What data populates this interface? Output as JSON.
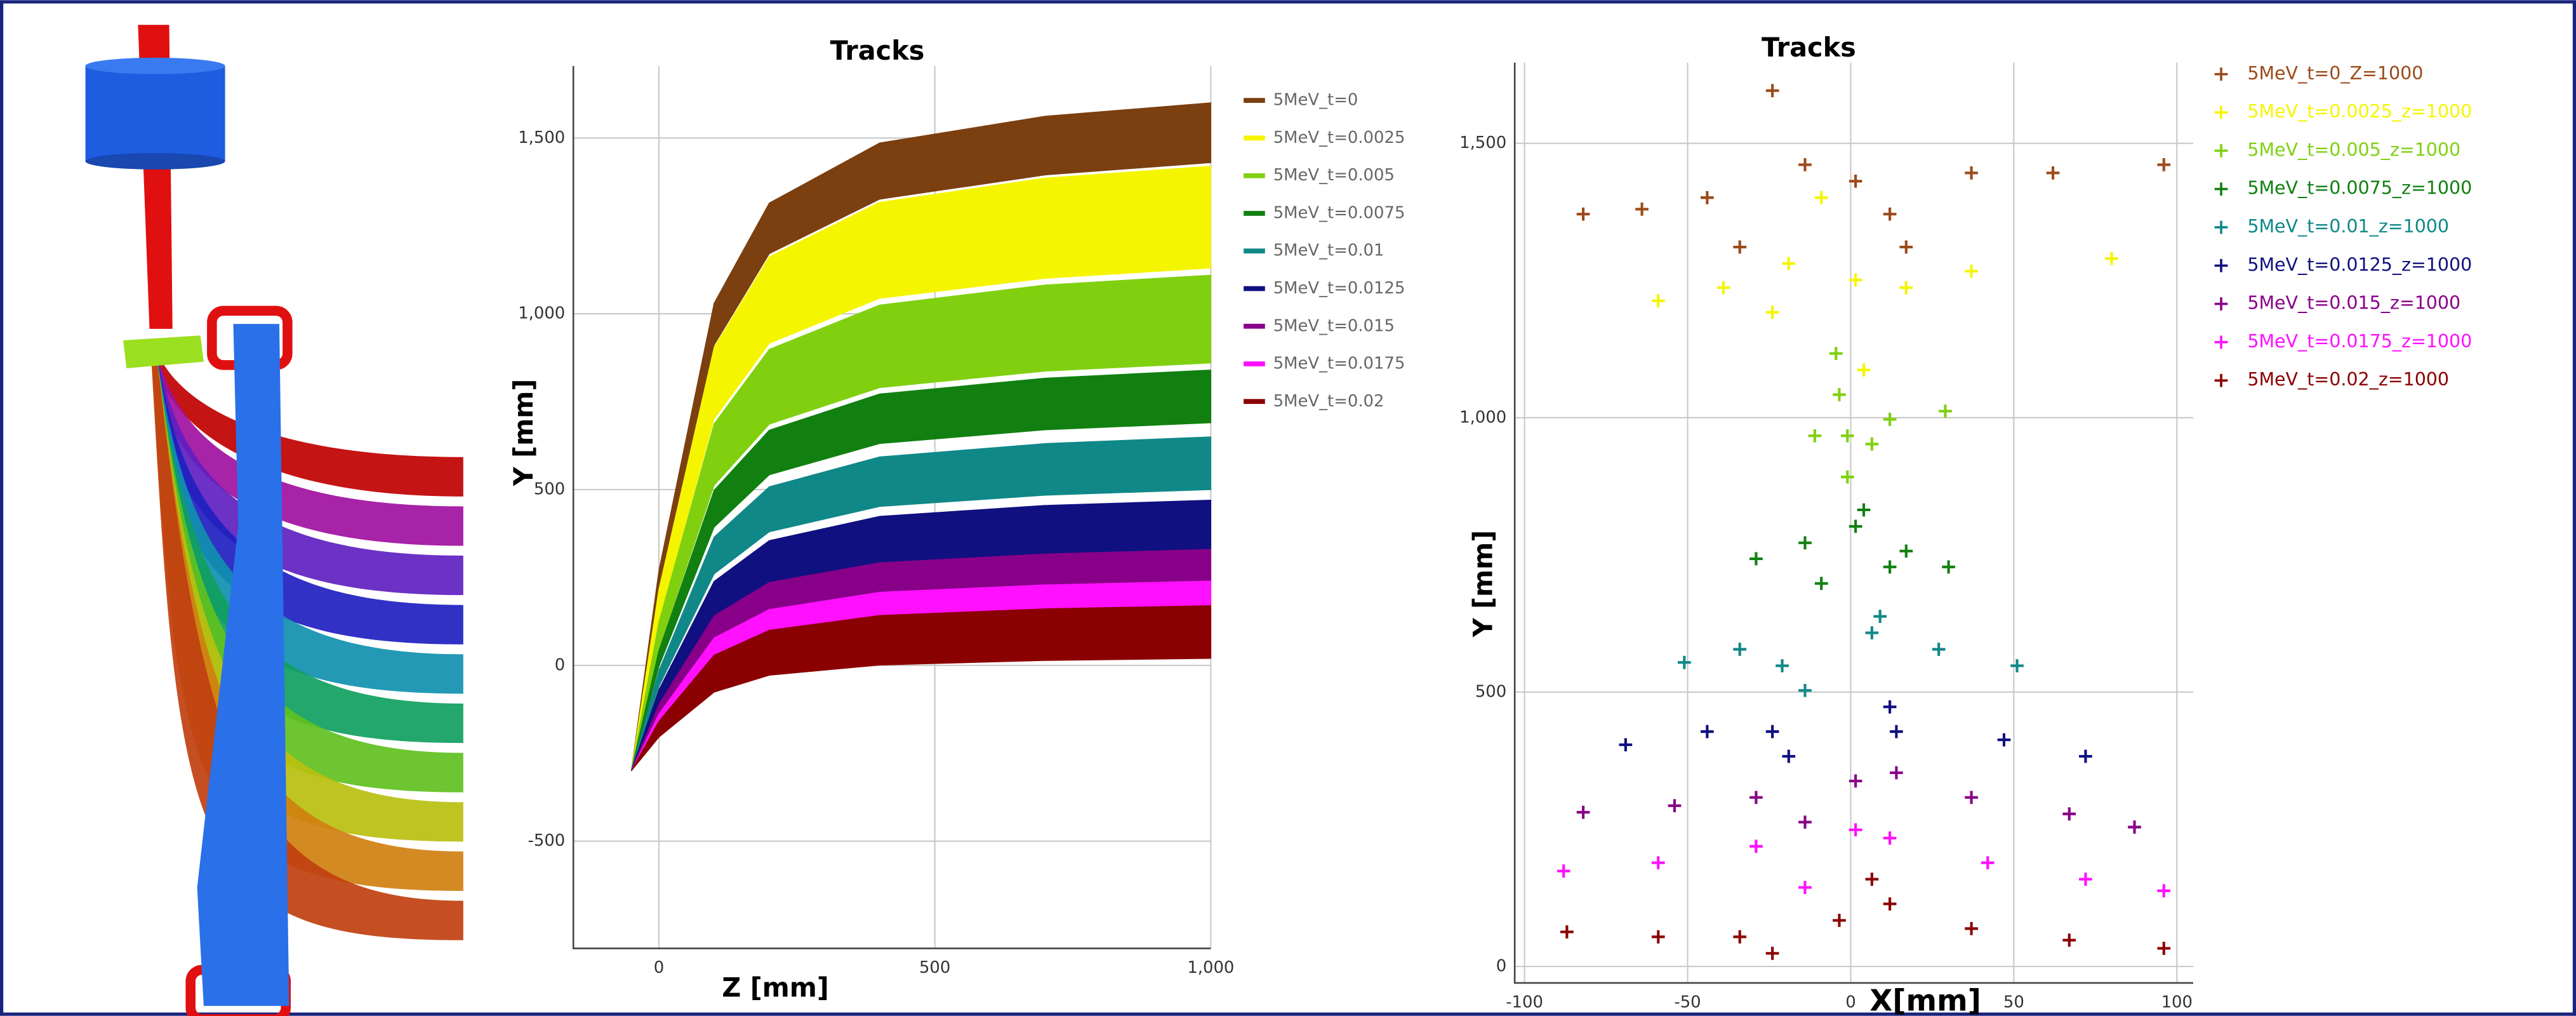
{
  "chart_data": [
    {
      "type": "band",
      "title": "Tracks",
      "x_label": "Z [mm]",
      "y_label": "Y [mm]",
      "legend": "right",
      "grid": true,
      "xlim": [
        -155,
        1000
      ],
      "ylim": [
        -805,
        1705
      ],
      "xticks": [
        0,
        500,
        {
          "value": 1000,
          "label": "1,000"
        }
      ],
      "yticks": [
        -500,
        0,
        500,
        {
          "value": 1000,
          "label": "1,000"
        },
        {
          "value": 1500,
          "label": "1,500"
        }
      ],
      "x": [
        -50,
        0,
        100,
        200,
        400,
        700,
        1000
      ],
      "series": [
        {
          "name": "5MeV_t=0",
          "color": "#7b3f10",
          "values": [
            -300,
            270,
            1030,
            1315,
            1486,
            1562,
            1600
          ],
          "lower": [
            -300,
            219,
            911,
            1171,
            1326,
            1395,
            1430
          ]
        },
        {
          "name": "5MeV_t=0.0025",
          "color": "#f5f500",
          "values": [
            -300,
            216,
            904,
            1162,
            1317,
            1386,
            1420
          ],
          "lower": [
            -300,
            129,
            701,
            916,
            1044,
            1101,
            1130
          ]
        },
        {
          "name": "5MeV_t=0.005",
          "color": "#80d010",
          "values": [
            -300,
            123,
            687,
            899,
            1025,
            1082,
            1110
          ],
          "lower": [
            -300,
            48,
            512,
            686,
            790,
            837,
            860
          ]
        },
        {
          "name": "5MeV_t=0.0075",
          "color": "#118011",
          "values": [
            -300,
            42,
            498,
            669,
            772,
            817,
            840
          ],
          "lower": [
            -300,
            -3,
            393,
            542,
            631,
            670,
            690
          ]
        },
        {
          "name": "5MeV_t=0.01",
          "color": "#108888",
          "values": [
            -300,
            -15,
            365,
            508,
            593,
            631,
            650
          ],
          "lower": [
            -300,
            -60,
            260,
            380,
            452,
            484,
            500
          ]
        },
        {
          "name": "5MeV_t=0.0125",
          "color": "#101080",
          "values": [
            -300,
            -69,
            239,
            355,
            424,
            455,
            470
          ],
          "lower": [
            -300,
            -111,
            141,
            236,
            292,
            317,
            330
          ]
        },
        {
          "name": "5MeV_t=0.015",
          "color": "#880088",
          "values": [
            -300,
            -111,
            141,
            236,
            292,
            317,
            330
          ],
          "lower": [
            -300,
            -147,
            57,
            134,
            179,
            200,
            210
          ]
        },
        {
          "name": "5MeV_t=0.0175",
          "color": "#ff10ff",
          "values": [
            -300,
            -138,
            78,
            159,
            208,
            229,
            240
          ],
          "lower": [
            -300,
            -174,
            -6,
            57,
            95,
            112,
            120
          ]
        },
        {
          "name": "5MeV_t=0.02",
          "color": "#8b0000",
          "values": [
            -300,
            -159,
            29,
            100,
            142,
            161,
            170
          ],
          "lower": [
            -300,
            -204,
            -76,
            -28,
            1,
            14,
            20
          ]
        }
      ]
    },
    {
      "type": "scatter",
      "title": "Tracks",
      "x_label": "X[mm]",
      "y_label": "Y [mm]",
      "legend": "right",
      "grid": true,
      "xlim": [
        -103,
        105
      ],
      "ylim": [
        -30,
        1647
      ],
      "xticks": [
        -100,
        -50,
        0,
        50,
        100
      ],
      "yticks": [
        0,
        500,
        {
          "value": 1000,
          "label": "1,000"
        },
        {
          "value": 1500,
          "label": "1,500"
        }
      ],
      "series": [
        {
          "name": "5MeV_t=0_Z=1000",
          "color": "#9c4a1a",
          "x": [
            -82,
            -64,
            -44,
            -24,
            -14,
            1.5,
            17,
            37,
            62,
            96,
            12,
            -34
          ],
          "values": [
            1371,
            1380,
            1401,
            1596,
            1461,
            1431,
            1311,
            1446,
            1446,
            1461,
            1371,
            1311
          ]
        },
        {
          "name": "5MeV_t=0.0025_z=1000",
          "color": "#f5f500",
          "x": [
            -59,
            -39,
            -19,
            -9,
            1.5,
            4,
            17,
            37,
            80,
            -24
          ],
          "values": [
            1213,
            1237,
            1281,
            1401,
            1251,
            1087,
            1237,
            1267,
            1290,
            1192
          ]
        },
        {
          "name": "5MeV_t=0.005_z=1000",
          "color": "#80d010",
          "x": [
            -4.5,
            -3.5,
            -11,
            -1,
            12,
            29,
            -1,
            6.5
          ],
          "values": [
            1117,
            1042,
            967,
            967,
            997,
            1012,
            892,
            952
          ]
        },
        {
          "name": "5MeV_t=0.0075_z=1000",
          "color": "#118011",
          "x": [
            -29,
            -14,
            -9,
            1.5,
            4,
            17,
            30,
            12
          ],
          "values": [
            743,
            772,
            698,
            802,
            832,
            757,
            728,
            728
          ]
        },
        {
          "name": "5MeV_t=0.01_z=1000",
          "color": "#108888",
          "x": [
            -51,
            -34,
            -21,
            -14,
            6.5,
            9,
            27,
            51
          ],
          "values": [
            554,
            578,
            548,
            503,
            608,
            638,
            578,
            548
          ]
        },
        {
          "name": "5MeV_t=0.0125_z=1000",
          "color": "#101080",
          "x": [
            -69,
            -44,
            -24,
            -19,
            12,
            14,
            47,
            72
          ],
          "values": [
            404,
            428,
            428,
            383,
            473,
            428,
            413,
            383
          ]
        },
        {
          "name": "5MeV_t=0.015_z=1000",
          "color": "#880088",
          "x": [
            -82,
            -54,
            -29,
            1.5,
            14,
            37,
            67,
            87,
            -14
          ],
          "values": [
            281,
            293,
            308,
            338,
            353,
            308,
            278,
            254,
            263
          ]
        },
        {
          "name": "5MeV_t=0.0175_z=1000",
          "color": "#ff10ff",
          "x": [
            -88,
            -59,
            -29,
            1.5,
            12,
            42,
            72,
            96,
            -14
          ],
          "values": [
            174,
            189,
            219,
            249,
            234,
            189,
            159,
            138,
            144
          ]
        },
        {
          "name": "5MeV_t=0.02_z=1000",
          "color": "#8b0000",
          "x": [
            -87,
            -59,
            -34,
            -24,
            6.5,
            12,
            37,
            67,
            96,
            -3.5
          ],
          "values": [
            63,
            54,
            54,
            24,
            159,
            114,
            69,
            48,
            33,
            84
          ]
        }
      ]
    }
  ]
}
